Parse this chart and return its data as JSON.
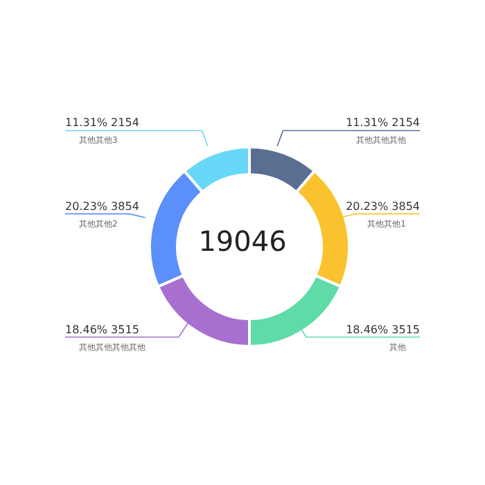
{
  "chart_data": {
    "type": "donut",
    "annotations": [
      "19046"
    ],
    "categories": [
      "其他其他其他",
      "其他其他1",
      "其他",
      "其他其他其他其他",
      "其他其他2",
      "其他其他3"
    ],
    "values": [
      2154,
      3854,
      3515,
      3515,
      3854,
      2154
    ],
    "colors": [
      "#5a6e92",
      "#f9c22e",
      "#5edba7",
      "#a86fd0",
      "#5b8ff9",
      "#68d8f8"
    ],
    "value_labels": [
      "11.31% 2154",
      "20.23% 3854",
      "18.46% 3515",
      "18.46% 3515",
      "20.23% 3854",
      "11.31% 2154"
    ],
    "legend": false
  }
}
